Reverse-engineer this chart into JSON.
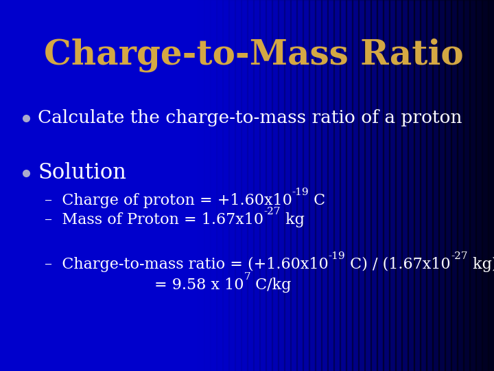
{
  "title": "Charge-to-Mass Ratio",
  "title_color": "#D4A843",
  "title_fontsize": 36,
  "bg_blue": "#0000CC",
  "bg_dark": "#000018",
  "swoosh_color": "#1a4fcc",
  "swoosh_line_color": "#6688ee",
  "bullet_color": "#AAAACC",
  "bullet1": "Calculate the charge-to-mass ratio of a proton",
  "bullet2": "Solution",
  "text_color": "#FFFFFF",
  "body_fontsize": 19,
  "solution_fontsize": 22,
  "sub_fontsize": 16,
  "sup_fontsize": 11
}
